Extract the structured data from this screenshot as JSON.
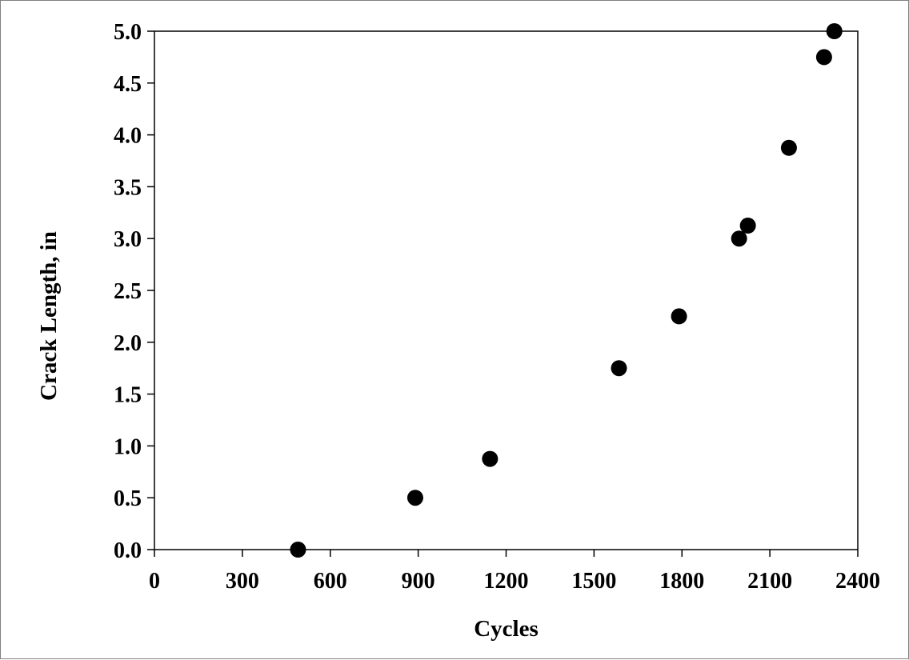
{
  "chart_data": {
    "type": "scatter",
    "title": "",
    "xlabel": "Cycles",
    "ylabel": "Crack Length, in",
    "xlim": [
      0,
      2400
    ],
    "ylim": [
      0,
      5.0
    ],
    "xticks": [
      "0",
      "300",
      "600",
      "900",
      "1200",
      "1500",
      "1800",
      "2100",
      "2400"
    ],
    "yticks": [
      "0.0",
      "0.5",
      "1.0",
      "1.5",
      "2.0",
      "2.5",
      "3.0",
      "3.5",
      "4.0",
      "4.5",
      "5.0"
    ],
    "grid": false,
    "legend": "none",
    "marker_color": "#000000",
    "series": [
      {
        "x": [
          490,
          890,
          1145,
          1585,
          1790,
          1995,
          2025,
          2165,
          2285,
          2320
        ],
        "y": [
          0.0,
          0.5,
          0.875,
          1.75,
          2.25,
          3.0,
          3.125,
          3.875,
          4.75,
          5.0
        ]
      }
    ]
  }
}
